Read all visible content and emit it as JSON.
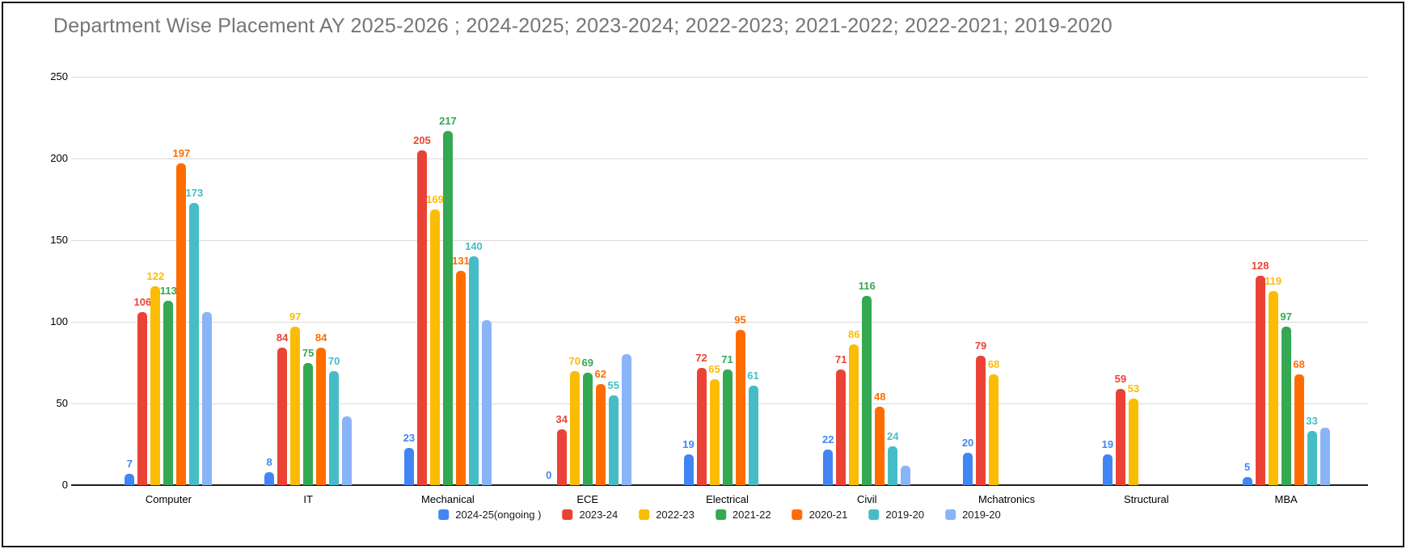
{
  "window": {
    "background": "#ffffff",
    "border_color": "#161616"
  },
  "chart_data": {
    "type": "bar",
    "title": "Department Wise Placement AY 2025-2026 ; 2024-2025; 2023-2024; 2022-2023; 2021-2022; 2022-2021; 2019-2020",
    "title_color": "#757575",
    "categories": [
      "Computer",
      "IT",
      "Mechanical",
      "ECE",
      "Electrical",
      "Civil",
      "Mchatronics",
      "Structural",
      "MBA"
    ],
    "series": [
      {
        "name": "2024-25(ongoing )",
        "color": "#4285f4",
        "show_labels": true,
        "values": [
          7,
          8,
          23,
          0,
          19,
          22,
          20,
          19,
          5
        ]
      },
      {
        "name": "2023-24",
        "color": "#ea4335",
        "show_labels": true,
        "values": [
          106,
          84,
          205,
          34,
          72,
          71,
          79,
          59,
          128
        ]
      },
      {
        "name": "2022-23",
        "color": "#fbbc04",
        "show_labels": true,
        "values": [
          122,
          97,
          169,
          70,
          65,
          86,
          68,
          53,
          119
        ]
      },
      {
        "name": "2021-22",
        "color": "#34a853",
        "show_labels": true,
        "values": [
          113,
          75,
          217,
          69,
          71,
          116,
          null,
          null,
          97
        ]
      },
      {
        "name": "2020-21",
        "color": "#ff6d01",
        "show_labels": true,
        "values": [
          197,
          84,
          131,
          62,
          95,
          48,
          null,
          null,
          68
        ]
      },
      {
        "name": "2019-20",
        "color": "#46bdc6",
        "show_labels": true,
        "values": [
          173,
          70,
          140,
          55,
          61,
          24,
          null,
          null,
          33
        ]
      },
      {
        "name": "2019-20",
        "color": "#8ab4f8",
        "show_labels": false,
        "values": [
          106,
          42,
          101,
          80,
          null,
          12,
          null,
          null,
          35
        ]
      }
    ],
    "ylim": [
      0,
      250
    ],
    "yticks": [
      0,
      50,
      100,
      150,
      200,
      250
    ],
    "grid": true,
    "legend_position": "bottom"
  }
}
